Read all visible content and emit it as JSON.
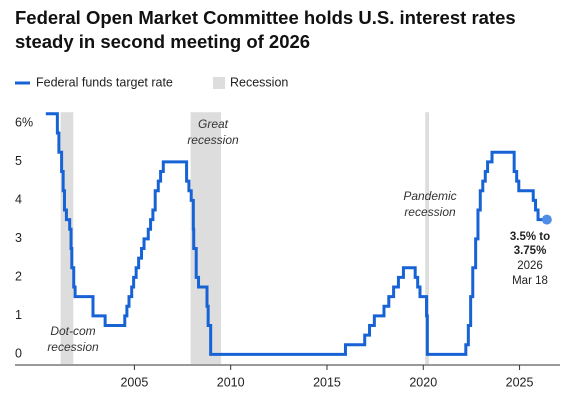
{
  "chart_data": {
    "type": "line",
    "step": "post",
    "title": "Federal Open Market Committee holds U.S. interest rates steady in second meeting of 2026",
    "x": [
      2000.4,
      2001.0,
      2001.08,
      2001.22,
      2001.3,
      2001.37,
      2001.47,
      2001.64,
      2001.71,
      2001.75,
      2001.85,
      2001.92,
      2002.85,
      2003.48,
      2004.5,
      2004.61,
      2004.72,
      2004.86,
      2004.96,
      2005.09,
      2005.22,
      2005.37,
      2005.5,
      2005.72,
      2005.84,
      2005.96,
      2006.08,
      2006.24,
      2006.36,
      2006.5,
      2007.71,
      2007.83,
      2007.95,
      2008.06,
      2008.08,
      2008.21,
      2008.33,
      2008.77,
      2008.83,
      2008.96,
      2015.96,
      2016.96,
      2017.21,
      2017.46,
      2017.96,
      2018.21,
      2018.46,
      2018.71,
      2018.97,
      2019.58,
      2019.71,
      2019.83,
      2020.17,
      2020.21,
      2022.21,
      2022.34,
      2022.46,
      2022.57,
      2022.72,
      2022.84,
      2022.96,
      2023.09,
      2023.22,
      2023.34,
      2023.57,
      2024.72,
      2024.85,
      2024.96,
      2025.71,
      2025.83,
      2025.96,
      2026.21
    ],
    "series": [
      {
        "name": "Federal funds target rate",
        "color": "#1763d6",
        "values": [
          6.5,
          6.0,
          5.5,
          5.0,
          4.5,
          4.0,
          3.75,
          3.5,
          3.0,
          2.5,
          2.0,
          1.75,
          1.25,
          1.0,
          1.25,
          1.5,
          1.75,
          2.0,
          2.25,
          2.5,
          2.75,
          3.0,
          3.25,
          3.5,
          3.75,
          4.0,
          4.5,
          4.75,
          5.0,
          5.25,
          4.75,
          4.5,
          4.25,
          3.5,
          3.0,
          2.25,
          2.0,
          1.5,
          1.0,
          0.25,
          0.5,
          0.75,
          1.0,
          1.25,
          1.5,
          1.75,
          2.0,
          2.25,
          2.5,
          2.25,
          2.0,
          1.75,
          1.25,
          0.25,
          0.5,
          1.0,
          1.75,
          2.5,
          3.25,
          4.0,
          4.5,
          4.75,
          5.0,
          5.25,
          5.5,
          5.0,
          4.75,
          4.5,
          4.25,
          4.0,
          3.75,
          3.75
        ]
      }
    ],
    "recession_legend": "Recession",
    "recession_color": "#dddddd",
    "recessions": [
      {
        "start": 2001.17,
        "end": 2001.83,
        "label": [
          "Dot-com",
          "recession"
        ]
      },
      {
        "start": 2007.92,
        "end": 2009.5,
        "label": [
          "Great",
          "recession"
        ]
      },
      {
        "start": 2020.1,
        "end": 2020.3,
        "label": [
          "Pandemic",
          "recession"
        ]
      }
    ],
    "end_label": {
      "bold": [
        "3.5% to",
        "3.75%"
      ],
      "normal": [
        "2026",
        "Mar 18"
      ]
    },
    "xlim": [
      1998.8,
      2027.1
    ],
    "ylim": [
      0,
      6.8
    ],
    "xticks": [
      2005,
      2010,
      2015,
      2020,
      2025
    ],
    "yticks": [
      0,
      1,
      2,
      3,
      4,
      5,
      {
        "value": 6,
        "label": "6%"
      }
    ]
  }
}
